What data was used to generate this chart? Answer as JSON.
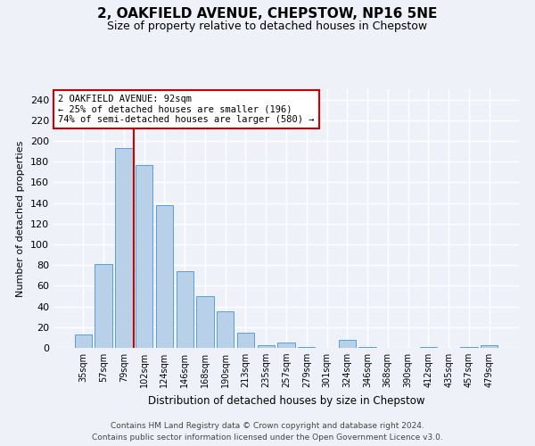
{
  "title": "2, OAKFIELD AVENUE, CHEPSTOW, NP16 5NE",
  "subtitle": "Size of property relative to detached houses in Chepstow",
  "xlabel": "Distribution of detached houses by size in Chepstow",
  "ylabel": "Number of detached properties",
  "categories": [
    "35sqm",
    "57sqm",
    "79sqm",
    "102sqm",
    "124sqm",
    "146sqm",
    "168sqm",
    "190sqm",
    "213sqm",
    "235sqm",
    "257sqm",
    "279sqm",
    "301sqm",
    "324sqm",
    "346sqm",
    "368sqm",
    "390sqm",
    "412sqm",
    "435sqm",
    "457sqm",
    "479sqm"
  ],
  "values": [
    13,
    81,
    193,
    177,
    138,
    74,
    50,
    35,
    15,
    3,
    5,
    1,
    0,
    8,
    1,
    0,
    0,
    1,
    0,
    1,
    3
  ],
  "bar_color": "#b8d0e8",
  "bar_edge_color": "#5a9fd4",
  "vline_color": "#cc0000",
  "annotation_text": "2 OAKFIELD AVENUE: 92sqm\n← 25% of detached houses are smaller (196)\n74% of semi-detached houses are larger (580) →",
  "annotation_box_color": "#ffffff",
  "annotation_box_edge": "#cc0000",
  "ylim": [
    0,
    250
  ],
  "yticks": [
    0,
    20,
    40,
    60,
    80,
    100,
    120,
    140,
    160,
    180,
    200,
    220,
    240
  ],
  "bg_color": "#eef2f8",
  "grid_color": "#ffffff",
  "footer": "Contains HM Land Registry data © Crown copyright and database right 2024.\nContains public sector information licensed under the Open Government Licence v3.0."
}
